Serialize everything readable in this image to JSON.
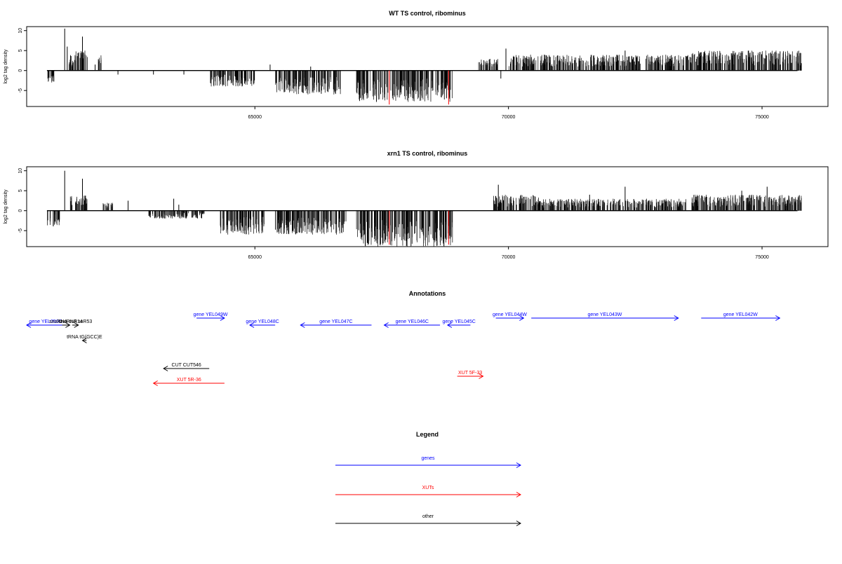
{
  "chart_data": [
    {
      "type": "bar",
      "title": "WT TS control, ribominus",
      "ylabel": "log2 tag density",
      "xlim": [
        60500,
        76300
      ],
      "ylim": [
        -9,
        11
      ],
      "x_ticks": [
        65000,
        70000,
        75000
      ],
      "y_ticks": [
        -5,
        0,
        5,
        10
      ],
      "red_markers": [
        67650,
        68820
      ],
      "clusters": [
        {
          "from": 60900,
          "to": 61050,
          "sign": -1,
          "max": 3
        },
        {
          "from": 61300,
          "to": 61450,
          "sign": 1,
          "max": 4
        },
        {
          "from": 61450,
          "to": 61700,
          "sign": 1,
          "max": 5
        },
        {
          "from": 61900,
          "to": 62000,
          "sign": 1,
          "max": 4
        },
        {
          "from": 64100,
          "to": 65000,
          "sign": -1,
          "max": 4
        },
        {
          "from": 65400,
          "to": 66700,
          "sign": -1,
          "max": 6
        },
        {
          "from": 67000,
          "to": 68900,
          "sign": -1,
          "max": 8
        },
        {
          "from": 69400,
          "to": 69800,
          "sign": 1,
          "max": 3
        },
        {
          "from": 70000,
          "to": 72600,
          "sign": 1,
          "max": 4
        },
        {
          "from": 72700,
          "to": 73600,
          "sign": 1,
          "max": 4
        },
        {
          "from": 73600,
          "to": 75800,
          "sign": 1,
          "max": 5
        }
      ],
      "peaks": [
        {
          "x": 61250,
          "y": 10.5
        },
        {
          "x": 61300,
          "y": 6
        },
        {
          "x": 61600,
          "y": 8.5
        },
        {
          "x": 61650,
          "y": 4
        },
        {
          "x": 61850,
          "y": 1.5
        },
        {
          "x": 62300,
          "y": -1
        },
        {
          "x": 63000,
          "y": -1
        },
        {
          "x": 63600,
          "y": -1
        },
        {
          "x": 65300,
          "y": 1.5
        },
        {
          "x": 66100,
          "y": 1
        },
        {
          "x": 69850,
          "y": -2
        },
        {
          "x": 69950,
          "y": 5.5
        },
        {
          "x": 70700,
          "y": 2
        },
        {
          "x": 72300,
          "y": 5
        }
      ]
    },
    {
      "type": "bar",
      "title": "xrn1 TS control, ribominus",
      "ylabel": "log2 tag density",
      "xlim": [
        60500,
        76300
      ],
      "ylim": [
        -9,
        11
      ],
      "x_ticks": [
        65000,
        70000,
        75000
      ],
      "y_ticks": [
        -5,
        0,
        5,
        10
      ],
      "red_markers": [
        67650,
        68820
      ],
      "clusters": [
        {
          "from": 60900,
          "to": 61150,
          "sign": -1,
          "max": 4
        },
        {
          "from": 61350,
          "to": 61700,
          "sign": 1,
          "max": 4
        },
        {
          "from": 62000,
          "to": 62200,
          "sign": 1,
          "max": 2
        },
        {
          "from": 62900,
          "to": 64000,
          "sign": -1,
          "max": 2
        },
        {
          "from": 64300,
          "to": 65200,
          "sign": -1,
          "max": 6
        },
        {
          "from": 65400,
          "to": 66800,
          "sign": -1,
          "max": 6
        },
        {
          "from": 67000,
          "to": 68900,
          "sign": -1,
          "max": 9
        },
        {
          "from": 69700,
          "to": 70600,
          "sign": 1,
          "max": 4
        },
        {
          "from": 70600,
          "to": 73500,
          "sign": 1,
          "max": 3
        },
        {
          "from": 73600,
          "to": 75800,
          "sign": 1,
          "max": 4
        }
      ],
      "peaks": [
        {
          "x": 61250,
          "y": 10
        },
        {
          "x": 61600,
          "y": 8
        },
        {
          "x": 62500,
          "y": 2.5
        },
        {
          "x": 63400,
          "y": 3
        },
        {
          "x": 63500,
          "y": 1.5
        },
        {
          "x": 69800,
          "y": 6.5
        },
        {
          "x": 71600,
          "y": 4
        },
        {
          "x": 72300,
          "y": 6
        },
        {
          "x": 74600,
          "y": 5
        },
        {
          "x": 75100,
          "y": 6
        }
      ]
    }
  ],
  "annotations": {
    "title": "Annotations",
    "xlim": [
      60500,
      76300
    ],
    "features": [
      {
        "label": "gene YEL050C",
        "start": 60000,
        "end": 61250,
        "strand": "-",
        "color": "#0000ff",
        "row": 1
      },
      {
        "label": "snoRNA snR14",
        "start": 61200,
        "end": 61350,
        "strand": "+",
        "color": "#000000",
        "row": 1
      },
      {
        "label": "snoRNA snR53",
        "start": 61400,
        "end": 61520,
        "strand": "+",
        "color": "#000000",
        "row": 1
      },
      {
        "label": "tRNA tG(GCC)E",
        "start": 61600,
        "end": 61680,
        "strand": "-",
        "color": "#000000",
        "row": 2
      },
      {
        "label": "gene YEL049W",
        "start": 63850,
        "end": 64400,
        "strand": "+",
        "color": "#0000ff",
        "row": 0
      },
      {
        "label": "gene YEL048C",
        "start": 64900,
        "end": 65400,
        "strand": "-",
        "color": "#0000ff",
        "row": 1
      },
      {
        "label": "gene YEL047C",
        "start": 65900,
        "end": 67300,
        "strand": "-",
        "color": "#0000ff",
        "row": 1
      },
      {
        "label": "gene YEL046C",
        "start": 67550,
        "end": 68650,
        "strand": "-",
        "color": "#0000ff",
        "row": 1
      },
      {
        "label": "gene YEL045C",
        "start": 68800,
        "end": 69250,
        "strand": "-",
        "color": "#0000ff",
        "row": 1
      },
      {
        "label": "gene YEL044W",
        "start": 69750,
        "end": 70300,
        "strand": "+",
        "color": "#0000ff",
        "row": 0
      },
      {
        "label": "gene YEL043W",
        "start": 70450,
        "end": 73350,
        "strand": "+",
        "color": "#0000ff",
        "row": 0
      },
      {
        "label": "gene YEL042W",
        "start": 73800,
        "end": 75350,
        "strand": "+",
        "color": "#0000ff",
        "row": 0
      },
      {
        "label": "CUT CUT546",
        "start": 63200,
        "end": 64100,
        "strand": "-",
        "color": "#000000",
        "row": 3
      },
      {
        "label": "XUT 5R-36",
        "start": 63000,
        "end": 64400,
        "strand": "-",
        "color": "#ff0000",
        "row": 4
      },
      {
        "label": "XUT 5F-33",
        "start": 68990,
        "end": 69500,
        "strand": "+",
        "color": "#ff0000",
        "row": 3.5
      }
    ]
  },
  "legend": {
    "title": "Legend",
    "items": [
      {
        "label": "genes",
        "color": "#0000ff"
      },
      {
        "label": "XUTs",
        "color": "#ff0000"
      },
      {
        "label": "other",
        "color": "#000000"
      }
    ]
  }
}
